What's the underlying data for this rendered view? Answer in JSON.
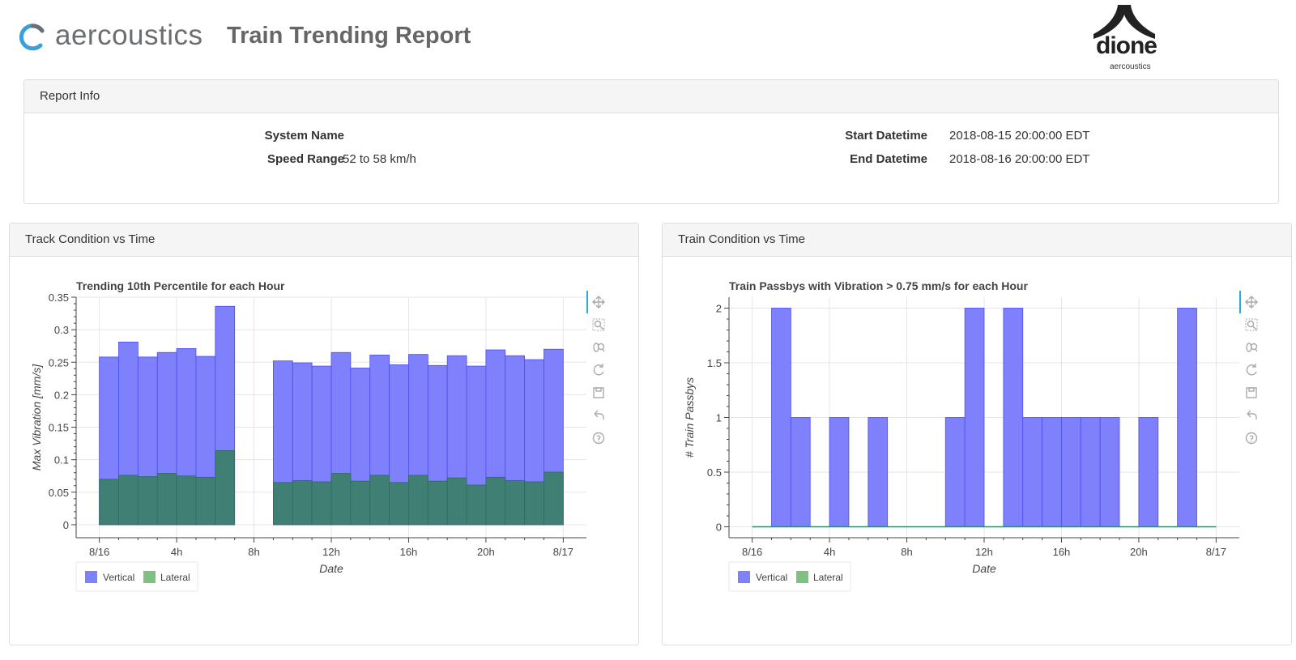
{
  "header": {
    "brand": "aercoustics",
    "title": "Train Trending Report",
    "partner_logo": "dione",
    "partner_sub": "aercoustics"
  },
  "report_info": {
    "heading": "Report Info",
    "system_name_label": "System Name",
    "system_name_value": "",
    "speed_range_label": "Speed Range",
    "speed_range_value": "52 to 58 km/h",
    "start_label": "Start Datetime",
    "start_value": "2018-08-15 20:00:00 EDT",
    "end_label": "End Datetime",
    "end_value": "2018-08-16 20:00:00 EDT"
  },
  "panels": {
    "left_heading": "Track Condition vs Time",
    "right_heading": "Train Condition vs Time"
  },
  "colors": {
    "vertical": "#7f80fb",
    "vertical_edge": "#4b4ef0",
    "lateral": "#3f7f74",
    "lateral_legend": "#80c080",
    "lateral_line": "#2e8b6e"
  },
  "toolbar": [
    "pan-icon",
    "box-zoom-icon",
    "wheel-zoom-icon",
    "reset-icon",
    "save-icon",
    "undo-icon",
    "help-icon"
  ],
  "chart_data": [
    {
      "type": "bar",
      "title": "Trending 10th Percentile for each Hour",
      "xlabel": "Date",
      "ylabel": "Max Vibration [mm/s]",
      "x_ticks": [
        "8/16",
        "4h",
        "8h",
        "12h",
        "16h",
        "20h",
        "8/17"
      ],
      "x_tick_hours": [
        0,
        4,
        8,
        12,
        16,
        20,
        24
      ],
      "x_range_hours": [
        -1.2,
        25.2
      ],
      "ylim": [
        -0.02,
        0.35
      ],
      "y_ticks": [
        0,
        0.05,
        0.1,
        0.15,
        0.2,
        0.25,
        0.3,
        0.35
      ],
      "y_tick_labels": [
        "0",
        "0.05",
        "0.1",
        "0.15",
        "0.2",
        "0.25",
        "0.3",
        "0.35"
      ],
      "grid": true,
      "legend": "bottom-left",
      "series": [
        {
          "name": "Vertical",
          "hours": [
            0,
            1,
            2,
            3,
            4,
            5,
            6,
            9,
            10,
            11,
            12,
            13,
            14,
            15,
            16,
            17,
            18,
            19,
            20,
            21,
            22,
            23
          ],
          "values": [
            0.258,
            0.281,
            0.258,
            0.265,
            0.271,
            0.259,
            0.336,
            0.252,
            0.249,
            0.244,
            0.265,
            0.241,
            0.261,
            0.246,
            0.262,
            0.245,
            0.26,
            0.244,
            0.269,
            0.26,
            0.254,
            0.27
          ]
        },
        {
          "name": "Lateral",
          "hours": [
            0,
            1,
            2,
            3,
            4,
            5,
            6,
            9,
            10,
            11,
            12,
            13,
            14,
            15,
            16,
            17,
            18,
            19,
            20,
            21,
            22,
            23
          ],
          "values": [
            0.07,
            0.076,
            0.074,
            0.079,
            0.075,
            0.073,
            0.114,
            0.065,
            0.068,
            0.066,
            0.079,
            0.067,
            0.076,
            0.065,
            0.076,
            0.067,
            0.072,
            0.061,
            0.073,
            0.068,
            0.066,
            0.081
          ]
        }
      ]
    },
    {
      "type": "bar",
      "title": "Train Passbys with Vibration > 0.75 mm/s for each Hour",
      "xlabel": "Date",
      "ylabel": "# Train Passbys",
      "x_ticks": [
        "8/16",
        "4h",
        "8h",
        "12h",
        "16h",
        "20h",
        "8/17"
      ],
      "x_tick_hours": [
        0,
        4,
        8,
        12,
        16,
        20,
        24
      ],
      "x_range_hours": [
        -1.2,
        25.2
      ],
      "ylim": [
        -0.1,
        2.1
      ],
      "y_ticks": [
        0,
        0.5,
        1,
        1.5,
        2
      ],
      "y_tick_labels": [
        "0",
        "0.5",
        "1",
        "1.5",
        "2"
      ],
      "grid": true,
      "legend": "bottom-left",
      "series": [
        {
          "name": "Vertical",
          "hours": [
            0,
            1,
            2,
            3,
            4,
            5,
            6,
            7,
            8,
            9,
            10,
            11,
            12,
            13,
            14,
            15,
            16,
            17,
            18,
            19,
            20,
            21,
            22,
            23
          ],
          "values": [
            0,
            2,
            1,
            0,
            1,
            0,
            1,
            0,
            0,
            0,
            1,
            2,
            0,
            2,
            1,
            1,
            1,
            1,
            1,
            0,
            1,
            0,
            2,
            0
          ]
        },
        {
          "name": "Lateral",
          "hours": [
            0,
            1,
            2,
            3,
            4,
            5,
            6,
            7,
            8,
            9,
            10,
            11,
            12,
            13,
            14,
            15,
            16,
            17,
            18,
            19,
            20,
            21,
            22,
            23
          ],
          "values": [
            0,
            0,
            0,
            0,
            0,
            0,
            0,
            0,
            0,
            0,
            0,
            0,
            0,
            0,
            0,
            0,
            0,
            0,
            0,
            0,
            0,
            0,
            0,
            0
          ]
        }
      ]
    }
  ]
}
